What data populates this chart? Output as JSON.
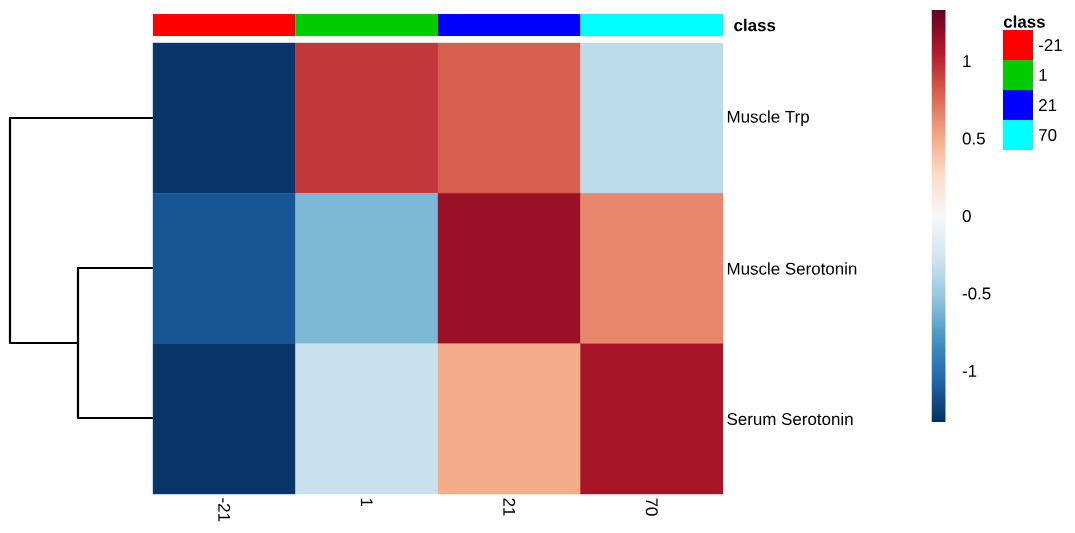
{
  "chart_data": {
    "type": "heatmap",
    "categories": [
      "-21",
      "1",
      "21",
      "70"
    ],
    "y_categories": [
      "Muscle Trp",
      "Muscle Serotonin",
      "Serum Serotonin"
    ],
    "cells": [
      [
        -1.3,
        0.95,
        0.8,
        -0.35
      ],
      [
        -1.15,
        -0.6,
        1.15,
        0.65
      ],
      [
        -1.3,
        -0.3,
        0.5,
        1.1
      ]
    ],
    "clim": [
      -1.33,
      1.33
    ],
    "cticks": [
      -1,
      -0.5,
      0,
      0.5,
      1
    ],
    "annotations": [
      "class",
      "class",
      "-21",
      "1",
      "21",
      "70"
    ]
  }
}
